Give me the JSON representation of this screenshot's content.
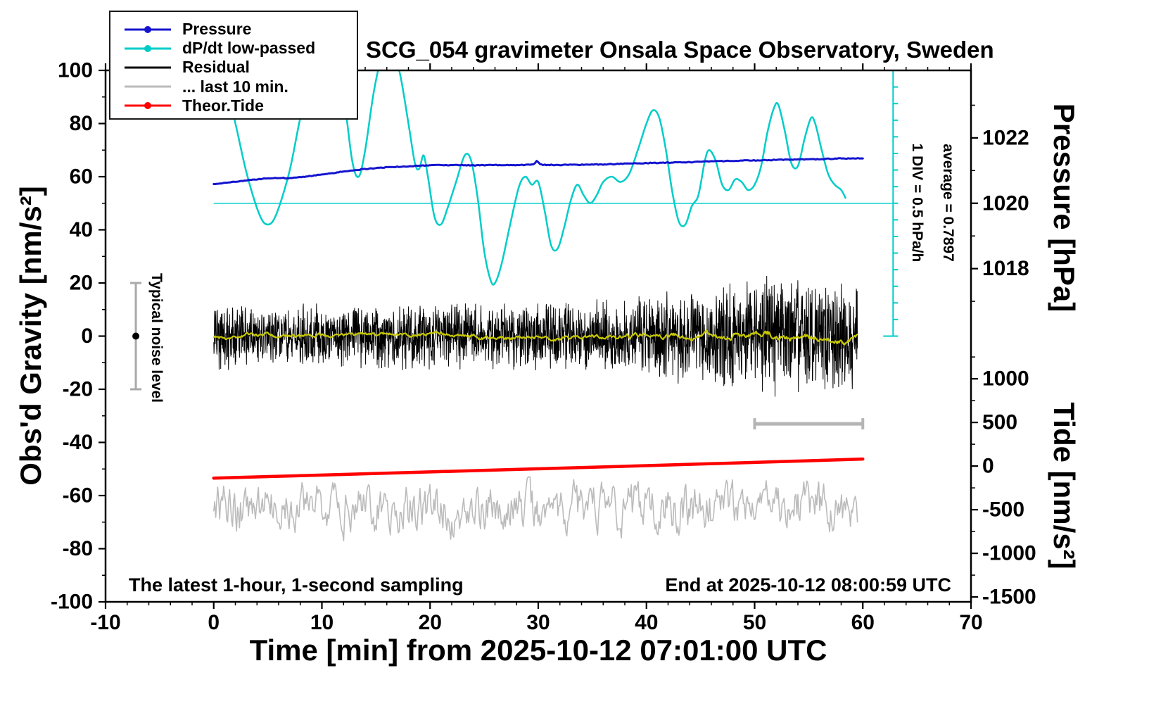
{
  "legend": {
    "items": [
      {
        "label": "Pressure",
        "color": "#1414cf",
        "marker": "dot"
      },
      {
        "label": "dP/dt low-passed",
        "color": "#00cdc8",
        "marker": "dot"
      },
      {
        "label": "Residual",
        "color": "#000000",
        "marker": "line"
      },
      {
        "label": "... last 10 min.",
        "color": "#bbbbbb",
        "marker": "line"
      },
      {
        "label": "Theor.Tide",
        "color": "#ff0000",
        "marker": "dot"
      }
    ]
  },
  "chart_data": {
    "type": "line",
    "title": "SCG_054 gravimeter Onsala Space Observatory, Sweden",
    "x_axis": {
      "label": "Time [min] from 2025-10-12 07:01:00 UTC",
      "min": -10,
      "max": 70,
      "major_ticks": [
        -10,
        0,
        10,
        20,
        30,
        40,
        50,
        60,
        70
      ],
      "minor_step": 2
    },
    "y_axis_gravity": {
      "label": "Obs'd Gravity [nm/s²]",
      "min": -100,
      "max": 100,
      "major_ticks": [
        -100,
        -80,
        -60,
        -40,
        -20,
        0,
        20,
        40,
        60,
        80,
        100
      ],
      "minor_step": 10
    },
    "y_axis_pressure": {
      "label": "Pressure [hPa]",
      "ticks": [
        1018,
        1020,
        1022
      ],
      "minor_ticks": [
        1017,
        1019,
        1021,
        1023
      ],
      "gravity_of_1020": 50,
      "gravity_per_hpa": 12.3
    },
    "y_axis_tide": {
      "label": "Tide [nm/s²]",
      "ticks": [
        1000,
        500,
        0,
        -500,
        -1000,
        -1500
      ],
      "minor_ticks": [
        1250,
        750,
        250,
        -250,
        -750,
        -1250
      ],
      "gravity_of_zero": -48.9,
      "gravity_per_500": 16.42
    },
    "annotations": {
      "noise_level": "Typical noise level",
      "div_scale": "1 DIV = 0.5 hPa/h",
      "average": "average = 0.7897",
      "sampling_note": "The latest 1-hour, 1-second sampling",
      "end_note": "End at 2025-10-12 08:00:59 UTC"
    },
    "series": [
      {
        "id": "pressure",
        "name": "Pressure",
        "axis": "pressure",
        "style": "jitterline",
        "color": "#1414cf",
        "width": 3,
        "jitter": 0.012,
        "seed": 5,
        "points": [
          [
            0,
            1020.59
          ],
          [
            2,
            1020.66
          ],
          [
            4,
            1020.73
          ],
          [
            5,
            1020.77
          ],
          [
            6,
            1020.78
          ],
          [
            7,
            1020.76
          ],
          [
            8,
            1020.8
          ],
          [
            10,
            1020.88
          ],
          [
            12,
            1020.97
          ],
          [
            14,
            1021.05
          ],
          [
            16,
            1021.1
          ],
          [
            18,
            1021.13
          ],
          [
            20,
            1021.16
          ],
          [
            22,
            1021.17
          ],
          [
            24,
            1021.16
          ],
          [
            26,
            1021.17
          ],
          [
            28,
            1021.17
          ],
          [
            29.6,
            1021.18
          ],
          [
            29.9,
            1021.31
          ],
          [
            30.2,
            1021.18
          ],
          [
            32,
            1021.17
          ],
          [
            34,
            1021.18
          ],
          [
            36,
            1021.19
          ],
          [
            38,
            1021.21
          ],
          [
            40,
            1021.23
          ],
          [
            42,
            1021.24
          ],
          [
            44,
            1021.26
          ],
          [
            46,
            1021.28
          ],
          [
            48,
            1021.3
          ],
          [
            50,
            1021.31
          ],
          [
            52,
            1021.33
          ],
          [
            54,
            1021.34
          ],
          [
            56,
            1021.35
          ],
          [
            58,
            1021.37
          ],
          [
            60,
            1021.38
          ]
        ]
      },
      {
        "id": "dpdt",
        "name": "dP/dt low-passed",
        "axis": "gravity",
        "style": "smooth",
        "color": "#00cdc8",
        "width": 2.5,
        "points": [
          [
            0,
            100
          ],
          [
            1.5,
            88
          ],
          [
            3,
            62
          ],
          [
            4.2,
            46
          ],
          [
            5,
            42
          ],
          [
            5.8,
            46
          ],
          [
            7,
            62
          ],
          [
            8,
            82
          ],
          [
            9,
            97
          ],
          [
            10,
            105
          ],
          [
            11,
            104
          ],
          [
            12,
            90
          ],
          [
            12.8,
            66
          ],
          [
            13.4,
            60
          ],
          [
            14,
            70
          ],
          [
            14.8,
            92
          ],
          [
            15.6,
            106
          ],
          [
            16.4,
            108
          ],
          [
            17.2,
            99
          ],
          [
            18,
            80
          ],
          [
            18.6,
            65
          ],
          [
            19,
            63
          ],
          [
            19.4,
            68
          ],
          [
            19.8,
            60
          ],
          [
            20.4,
            45
          ],
          [
            21,
            42
          ],
          [
            21.6,
            48
          ],
          [
            22.4,
            58
          ],
          [
            23.2,
            68
          ],
          [
            23.8,
            66
          ],
          [
            24.4,
            52
          ],
          [
            25,
            32
          ],
          [
            25.6,
            21
          ],
          [
            26,
            20
          ],
          [
            26.6,
            27
          ],
          [
            27.4,
            42
          ],
          [
            28.2,
            56
          ],
          [
            28.8,
            60
          ],
          [
            29.4,
            57
          ],
          [
            30,
            58
          ],
          [
            30.6,
            47
          ],
          [
            31.2,
            34
          ],
          [
            31.8,
            33
          ],
          [
            32.4,
            41
          ],
          [
            33,
            51
          ],
          [
            33.6,
            57
          ],
          [
            34.2,
            53
          ],
          [
            34.8,
            50
          ],
          [
            35.4,
            53
          ],
          [
            36,
            58
          ],
          [
            36.8,
            60
          ],
          [
            37.6,
            58
          ],
          [
            38.4,
            61
          ],
          [
            39.2,
            70
          ],
          [
            40,
            80
          ],
          [
            40.6,
            85
          ],
          [
            41.2,
            82
          ],
          [
            41.8,
            70
          ],
          [
            42.4,
            54
          ],
          [
            43,
            43
          ],
          [
            43.6,
            42
          ],
          [
            44.2,
            49
          ],
          [
            44.8,
            53
          ],
          [
            45.4,
            66
          ],
          [
            45.8,
            70
          ],
          [
            46.4,
            66
          ],
          [
            47,
            57
          ],
          [
            47.6,
            55
          ],
          [
            48.2,
            59
          ],
          [
            48.8,
            58
          ],
          [
            49.4,
            55
          ],
          [
            50,
            57
          ],
          [
            50.6,
            64
          ],
          [
            51.2,
            77
          ],
          [
            51.8,
            86
          ],
          [
            52.2,
            87
          ],
          [
            52.8,
            77
          ],
          [
            53.4,
            65
          ],
          [
            54,
            64
          ],
          [
            54.6,
            74
          ],
          [
            55.2,
            82
          ],
          [
            55.6,
            80
          ],
          [
            56.2,
            70
          ],
          [
            56.8,
            61
          ],
          [
            57.4,
            57
          ],
          [
            58,
            55
          ],
          [
            58.4,
            52
          ]
        ]
      },
      {
        "id": "residual",
        "name": "Residual",
        "axis": "gravity",
        "style": "noise",
        "color": "#000000",
        "width": 1,
        "center": 0,
        "n": 2400,
        "seed": 7,
        "gain": 1.9,
        "t0": 0,
        "t1": 59.5,
        "envelope": [
          [
            0,
            7
          ],
          [
            8,
            6.5
          ],
          [
            16,
            7
          ],
          [
            24,
            7
          ],
          [
            32,
            7.5
          ],
          [
            38,
            8
          ],
          [
            43,
            9.5
          ],
          [
            47,
            11
          ],
          [
            51,
            12.5
          ],
          [
            55,
            12.5
          ],
          [
            59.5,
            11.5
          ]
        ]
      },
      {
        "id": "residual_lp",
        "name": "Residual low-passed",
        "axis": "gravity",
        "style": "walk",
        "color": "#c8c800",
        "width": 2.2,
        "center": 0,
        "n": 700,
        "seed": 11,
        "decay": 0.93,
        "step": 0.5,
        "clamp": 3.2,
        "t0": 0,
        "t1": 59.5,
        "envelope": [
          [
            0,
            7
          ],
          [
            30,
            7.5
          ],
          [
            43,
            9.5
          ],
          [
            51,
            12.5
          ],
          [
            59.5,
            11.5
          ]
        ]
      },
      {
        "id": "last10",
        "name": "... last 10 min.",
        "axis": "gravity",
        "style": "walk",
        "color": "#bbbbbb",
        "width": 1.6,
        "center": -65,
        "n": 650,
        "seed": 23,
        "decay": 0.6,
        "step": 6.8,
        "clamp": 12,
        "t0": 0,
        "t1": 59.5,
        "envelope": [
          [
            0,
            7
          ],
          [
            59.5,
            7
          ]
        ]
      },
      {
        "id": "tide",
        "name": "Theor.Tide",
        "axis": "tide",
        "style": "smooth",
        "color": "#ff0000",
        "width": 4.5,
        "points": [
          [
            0,
            -138
          ],
          [
            10,
            -103
          ],
          [
            20,
            -67
          ],
          [
            30,
            -31
          ],
          [
            40,
            5
          ],
          [
            50,
            42
          ],
          [
            60,
            80
          ]
        ]
      }
    ],
    "reference": {
      "dpdt_zero_line": {
        "gravity": 50,
        "t_start": 0,
        "t_end": 62.8,
        "color": "#00cdc8"
      },
      "dpdt_axis": {
        "t": 62.8,
        "g_top": 100,
        "g_bottom": 0,
        "div_gravity": 6.25,
        "color": "#00cdc8"
      },
      "noise_bar": {
        "t": -7.2,
        "g_min": -20,
        "g_max": 20,
        "dot_g": 0,
        "color": "#aaaaaa"
      },
      "duration_bar": {
        "t_start": 50,
        "t_end": 60,
        "gravity": -33,
        "color": "#b5b5b5"
      }
    }
  }
}
